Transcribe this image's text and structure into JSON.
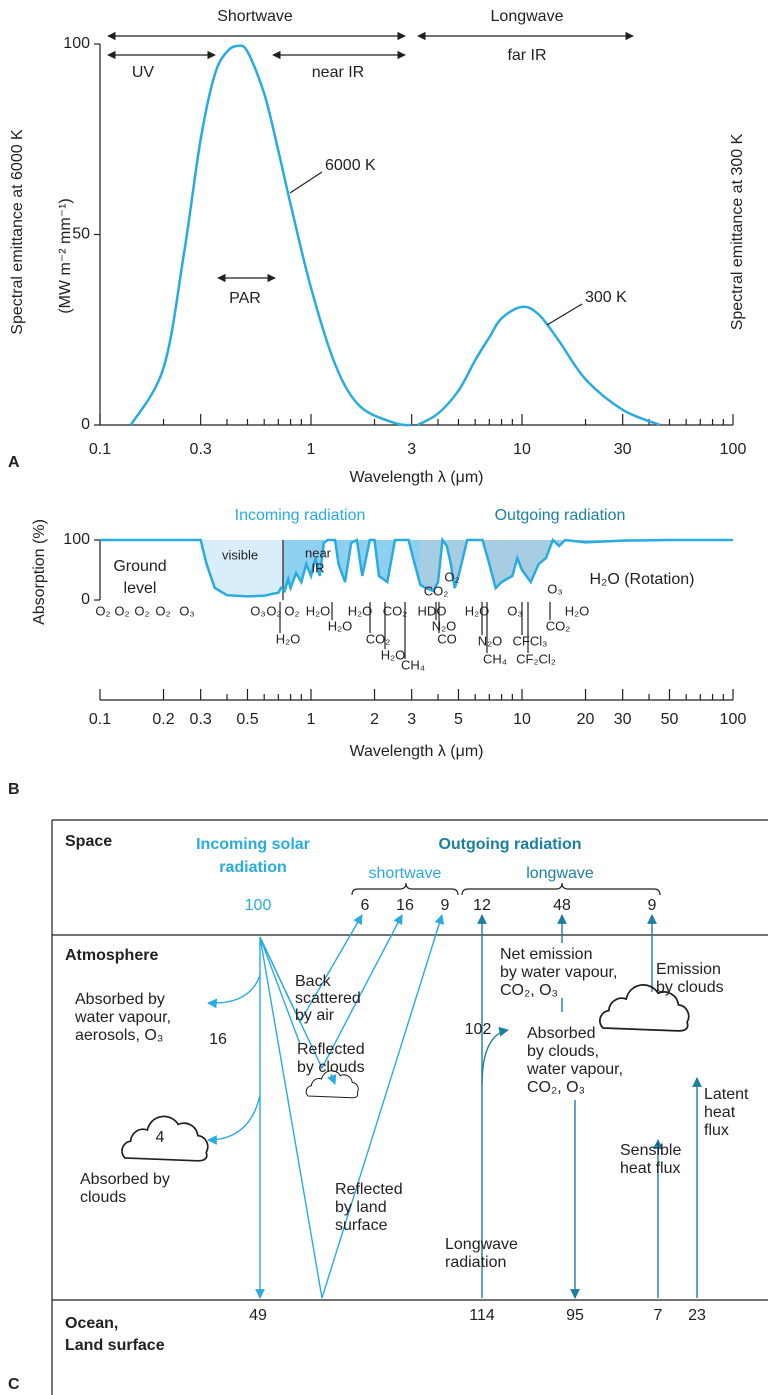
{
  "chart_data": [
    {
      "type": "line",
      "panel_label": "A",
      "xlabel": "Wavelength λ (μm)",
      "ylabel": [
        "Spectral emittance at 6000 K",
        "(MW m⁻² mm⁻¹)"
      ],
      "y2label": [
        "Spectral emittance at 300 K",
        "(MW m⁻² mm⁻¹)"
      ],
      "log_x": true,
      "xlim": [
        0.1,
        100
      ],
      "xticks": [
        0.1,
        0.3,
        1,
        3,
        10,
        30,
        100
      ],
      "minor_xticks": [
        0.2,
        0.4,
        0.5,
        0.6,
        0.7,
        0.8,
        0.9,
        2,
        4,
        5,
        6,
        7,
        8,
        9,
        20,
        40,
        50,
        60,
        70,
        80,
        90
      ],
      "ylim": [
        0,
        100
      ],
      "yticks": [
        0,
        50,
        100
      ],
      "annotations": {
        "shortwave": "Shortwave",
        "longwave": "Longwave",
        "uv": "UV",
        "near_ir": "near IR",
        "far_ir": "far IR",
        "par": "PAR"
      },
      "series": [
        {
          "name": "6000 K",
          "color": "#29abe2",
          "x": [
            0.14,
            0.2,
            0.25,
            0.3,
            0.35,
            0.4,
            0.45,
            0.5,
            0.6,
            0.7,
            0.8,
            1,
            1.3,
            1.7,
            2.5,
            3
          ],
          "values": [
            0,
            15,
            45,
            75,
            92,
            98,
            99.5,
            98,
            87,
            72,
            58,
            36,
            16,
            5,
            0.5,
            0
          ]
        },
        {
          "name": "300 K",
          "color": "#29abe2",
          "x": [
            3.2,
            4,
            5,
            6,
            7,
            8,
            10,
            12,
            15,
            20,
            30,
            45
          ],
          "values": [
            0,
            3,
            9,
            17,
            23,
            28,
            31,
            29,
            22,
            12,
            4,
            0
          ]
        }
      ]
    },
    {
      "type": "area",
      "panel_label": "B",
      "xlabel": "Wavelength λ (μm)",
      "ylabel": "Absorption (%)",
      "log_x": true,
      "xlim": [
        0.1,
        100
      ],
      "xticks": [
        0.1,
        0.2,
        0.3,
        0.5,
        1,
        2,
        3,
        5,
        10,
        20,
        30,
        50,
        100
      ],
      "minor_xticks": [
        0.4,
        0.6,
        0.7,
        0.8,
        0.9,
        4,
        6,
        7,
        8,
        9,
        40,
        60,
        70,
        80,
        90
      ],
      "ylim": [
        0,
        100
      ],
      "yticks": [
        0,
        100
      ],
      "annotations": {
        "incoming": "Incoming radiation",
        "outgoing": "Outgoing radiation",
        "visible": "visible",
        "near_ir": [
          "near",
          "IR"
        ],
        "ground": [
          "Ground",
          "level"
        ],
        "rotation": "H₂O (Rotation)"
      },
      "absorbers": [
        "O₂",
        "O₂",
        "O₂",
        "O₂",
        "O₃",
        "O₃",
        "O₂",
        "O₂",
        "H₂O",
        "H₂O",
        "CO₂",
        "HDO",
        "H₂O",
        "O₃",
        "H₂O",
        "H₂O",
        "N₂O",
        "CO₂",
        "H₂O",
        "CO₂",
        "CO",
        "N₂O",
        "CFCl₃",
        "H₂O",
        "CH₄",
        "CH₄",
        "CF₂Cl₂",
        "CO₂",
        "O₂",
        "O₃"
      ],
      "series": [
        {
          "name": "Absorption",
          "color": "#29abe2",
          "x": [
            0.1,
            0.3,
            0.32,
            0.35,
            0.4,
            0.5,
            0.6,
            0.65,
            0.7,
            0.72,
            0.75,
            0.78,
            0.8,
            0.85,
            0.9,
            0.95,
            1,
            1.05,
            1.1,
            1.15,
            1.2,
            1.3,
            1.35,
            1.45,
            1.55,
            1.65,
            1.75,
            1.9,
            2,
            2.1,
            2.3,
            2.5,
            2.7,
            2.9,
            3.1,
            3.3,
            3.5,
            3.8,
            4,
            4.2,
            4.4,
            4.6,
            4.8,
            5,
            5.5,
            6,
            6.5,
            7,
            7.5,
            8,
            9,
            9.5,
            10,
            11,
            12,
            13,
            14,
            15,
            16,
            18,
            20,
            30,
            50,
            100
          ],
          "values": [
            100,
            100,
            60,
            20,
            8,
            6,
            7,
            10,
            12,
            20,
            15,
            35,
            20,
            45,
            30,
            60,
            40,
            70,
            40,
            95,
            100,
            100,
            60,
            30,
            95,
            100,
            40,
            100,
            100,
            40,
            30,
            100,
            100,
            100,
            60,
            25,
            20,
            15,
            30,
            100,
            90,
            60,
            20,
            40,
            100,
            100,
            100,
            60,
            20,
            30,
            40,
            70,
            50,
            30,
            60,
            70,
            100,
            90,
            100,
            98,
            96,
            99,
            100,
            100
          ]
        }
      ]
    }
  ],
  "diagram": {
    "label": "C",
    "zones": {
      "space": "Space",
      "atmosphere": "Atmosphere",
      "surface": [
        "Ocean,",
        "Land surface"
      ]
    },
    "incoming": {
      "title": [
        "Incoming solar",
        "radiation"
      ],
      "value": 100
    },
    "outgoing": {
      "title": "Outgoing radiation",
      "shortwave": "shortwave",
      "longwave": "longwave",
      "shortwave_values": [
        6,
        16,
        9
      ],
      "longwave_values": [
        12,
        48,
        9
      ]
    },
    "backscatter": [
      "Back",
      "scattered",
      "by air"
    ],
    "absorbed_gas": {
      "text": [
        "Absorbed by",
        "water vapour,",
        "aerosols, O₃"
      ],
      "value": 16
    },
    "reflected_clouds": [
      "Reflected",
      "by clouds"
    ],
    "absorbed_clouds": {
      "text": [
        "Absorbed by",
        "clouds"
      ],
      "value": 4
    },
    "reflected_land": [
      "Reflected",
      "by land",
      "surface"
    ],
    "surface_absorbed": 49,
    "net_emission": [
      "Net emission",
      "by water vapour,",
      "CO₂, O₃"
    ],
    "emission_clouds": [
      "Emission",
      "by clouds"
    ],
    "absorbed_atm": {
      "text": [
        "Absorbed",
        "by clouds,",
        "water vapour,",
        "CO₂, O₃"
      ],
      "value": 102
    },
    "longwave_rad": {
      "text": [
        "Longwave",
        "radiation"
      ],
      "value": 114
    },
    "back_radiation": 95,
    "sensible": {
      "text": [
        "Sensible",
        "heat flux"
      ],
      "value": 7
    },
    "latent": {
      "text": [
        "Latent",
        "heat",
        "flux"
      ],
      "value": 23
    }
  }
}
